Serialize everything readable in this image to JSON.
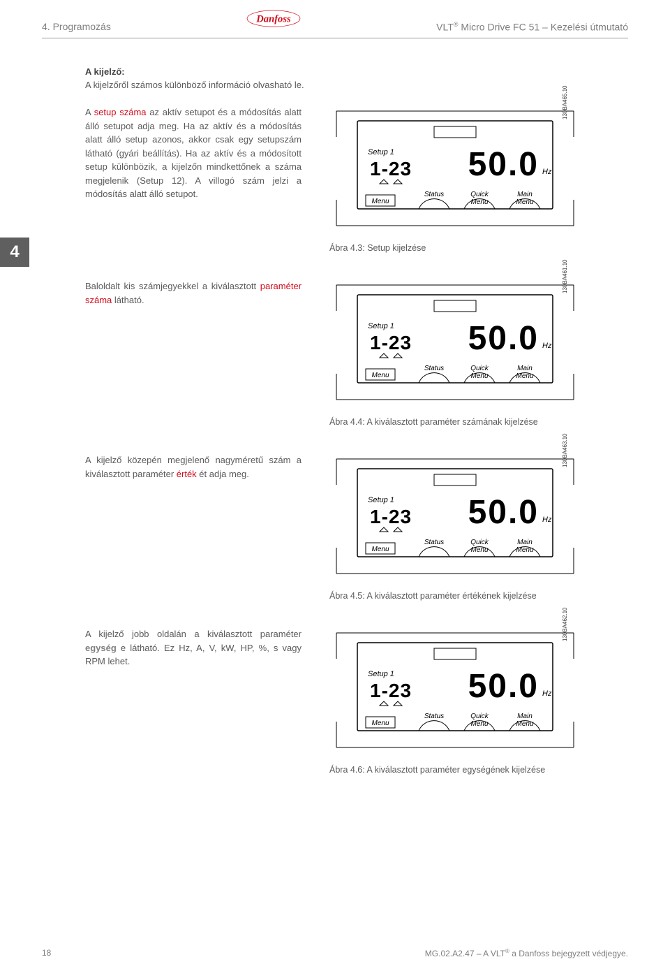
{
  "header": {
    "left": "4. Programozás",
    "right_prefix": "VLT",
    "right_suffix": " Micro Drive FC 51 – Kezelési útmutató",
    "logo_color": "#d10a1b",
    "logo_text": "Danfoss"
  },
  "tab": {
    "number": "4"
  },
  "intro": {
    "heading": "A kijelző:",
    "text": "A kijelzőről számos különböző információ olvasható le."
  },
  "blocks": [
    {
      "text_parts": [
        {
          "t": "A ",
          "cls": ""
        },
        {
          "t": "setup száma",
          "cls": "accent"
        },
        {
          "t": " az aktív setupot és a módosítás alatt álló setupot adja meg. Ha az aktív és a módosítás alatt álló setup azonos, akkor csak egy setupszám látható (gyári beállítás). Ha az aktív és a módosított setup különbözik, a kijelzőn mindkettőnek a száma megjelenik (Setup 12). A villogó szám jelzi a módosítás alatt álló setupot.",
          "cls": ""
        }
      ],
      "caption": "Ábra 4.3: Setup kijelzése",
      "panel": {
        "side_label": "130BA465.10"
      }
    },
    {
      "text_parts": [
        {
          "t": "Baloldalt kis számjegyekkel a kiválasztott ",
          "cls": ""
        },
        {
          "t": "paraméter száma",
          "cls": "accent"
        },
        {
          "t": " látható.",
          "cls": ""
        }
      ],
      "caption": "Ábra 4.4: A kiválasztott paraméter számának kijelzése",
      "panel": {
        "side_label": "130BA461.10"
      }
    },
    {
      "text_parts": [
        {
          "t": "A kijelző közepén megjelenő nagyméretű szám a kiválasztott paraméter ",
          "cls": ""
        },
        {
          "t": "érték",
          "cls": "accent"
        },
        {
          "t": " ét adja meg.",
          "cls": ""
        }
      ],
      "caption": "Ábra 4.5: A kiválasztott paraméter értékének kijelzése",
      "panel": {
        "side_label": "130BA463.10"
      }
    },
    {
      "text_parts": [
        {
          "t": "A kijelző jobb oldalán a kiválasztott paraméter ",
          "cls": ""
        },
        {
          "t": "egység",
          "cls": "gray-bold"
        },
        {
          "t": " e látható. Ez Hz, A, V, kW, HP, %, s vagy RPM lehet.",
          "cls": ""
        }
      ],
      "caption": "Ábra 4.6: A kiválasztott paraméter egységének kijelzése",
      "panel": {
        "side_label": "130BA462.10"
      }
    }
  ],
  "display": {
    "setup_label": "Setup 1",
    "param_number": "1-23",
    "big_value": "50.0",
    "unit": "Hz",
    "btn_status": "Status",
    "btn_quick1": "Quick",
    "btn_quick2": "Menu",
    "btn_main1": "Main",
    "btn_main2": "Menu",
    "btn_menu": "Menu"
  },
  "footer": {
    "page": "18",
    "doc_prefix": "MG.02.A2.47 – A VLT",
    "doc_suffix": " a Danfoss bejegyzett védjegye."
  },
  "colors": {
    "accent": "#d10a1b",
    "gray_text": "#7f7f7f",
    "body_text": "#5a5a5a",
    "tab_bg": "#5f5f5f",
    "line": "#000000"
  }
}
